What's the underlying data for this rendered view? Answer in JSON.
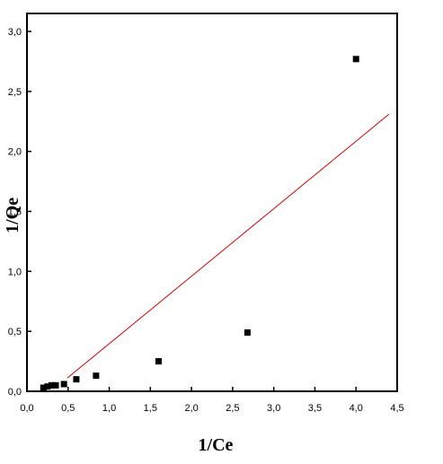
{
  "chart_data": {
    "type": "scatter",
    "xlabel": "1/Ce",
    "ylabel": "1/Qe",
    "xlim": [
      0,
      4.5
    ],
    "ylim": [
      0,
      3.15
    ],
    "xticks": [
      {
        "value": 0,
        "label": "0,0"
      },
      {
        "value": 0.5,
        "label": "0,5"
      },
      {
        "value": 1,
        "label": "1,0"
      },
      {
        "value": 1.5,
        "label": "1,5"
      },
      {
        "value": 2,
        "label": "2,0"
      },
      {
        "value": 2.5,
        "label": "2,5"
      },
      {
        "value": 3,
        "label": "3,0"
      },
      {
        "value": 3.5,
        "label": "3,5"
      },
      {
        "value": 4,
        "label": "4,0"
      },
      {
        "value": 4.5,
        "label": "4,5"
      }
    ],
    "yticks": [
      {
        "value": 0,
        "label": "0,0"
      },
      {
        "value": 0.5,
        "label": "0,5"
      },
      {
        "value": 1,
        "label": "1,0"
      },
      {
        "value": 1.5,
        "label": "1,5"
      },
      {
        "value": 2,
        "label": "2,0"
      },
      {
        "value": 2.5,
        "label": "2,5"
      },
      {
        "value": 3,
        "label": "3,0"
      }
    ],
    "series": [
      {
        "kind": "scatter",
        "color": "#000000",
        "x": [
          0.2,
          0.25,
          0.3,
          0.35,
          0.45,
          0.6,
          0.84,
          1.6,
          2.68,
          4.0
        ],
        "values": [
          0.03,
          0.04,
          0.05,
          0.05,
          0.06,
          0.1,
          0.13,
          0.25,
          0.49,
          2.77
        ]
      },
      {
        "kind": "line",
        "color": "#cc0000",
        "x": [
          0.49,
          4.4
        ],
        "values": [
          0.11,
          2.31
        ]
      }
    ]
  }
}
